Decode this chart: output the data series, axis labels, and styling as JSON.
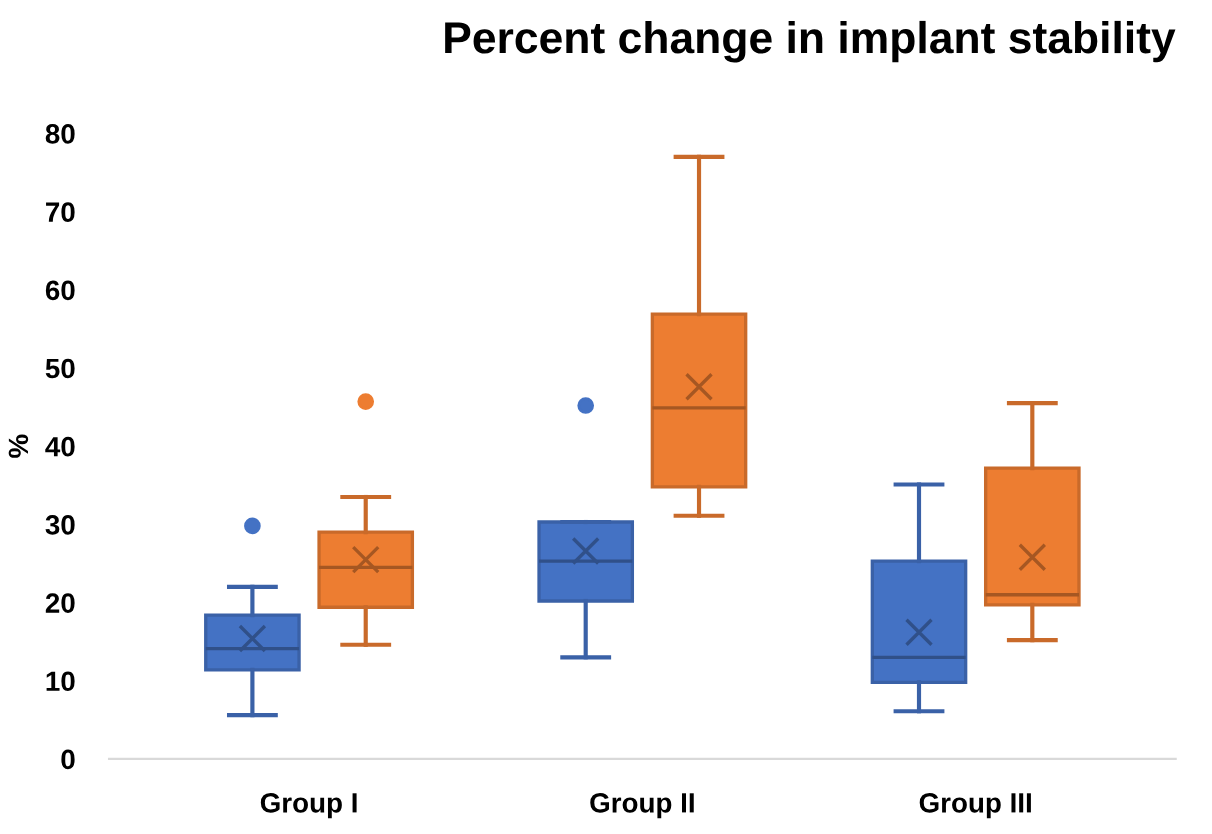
{
  "chart_data": {
    "type": "box",
    "title": "Percent change in implant stability",
    "ylabel": "%",
    "categories": [
      "Group I",
      "Group II",
      "Group III"
    ],
    "ylim": [
      0,
      80
    ],
    "yticks": [
      0,
      10,
      20,
      30,
      40,
      50,
      60,
      70,
      80
    ],
    "grid": false,
    "legend": false,
    "series": [
      {
        "color": "#4472c4",
        "boxes": [
          {
            "low": 5.6,
            "q1": 11.4,
            "median": 14.1,
            "q3": 18.4,
            "high": 22,
            "mean": 15.4,
            "outliers": [
              29.8
            ]
          },
          {
            "low": 13,
            "q1": 20.2,
            "median": 25.3,
            "q3": 30.3,
            "high": 30.3,
            "mean": 26.6,
            "outliers": [
              45.2
            ]
          },
          {
            "low": 6.1,
            "q1": 9.8,
            "median": 13,
            "q3": 25.3,
            "high": 35.1,
            "mean": 16.2
          }
        ]
      },
      {
        "color": "#ed7d31",
        "boxes": [
          {
            "low": 14.6,
            "q1": 19.4,
            "median": 24.5,
            "q3": 29,
            "high": 33.5,
            "mean": 25.5,
            "outliers": [
              45.7
            ]
          },
          {
            "low": 31.1,
            "q1": 34.8,
            "median": 44.9,
            "q3": 56.9,
            "high": 77,
            "mean": 47.6
          },
          {
            "low": 15.2,
            "q1": 19.7,
            "median": 21,
            "q3": 37.2,
            "high": 45.5,
            "mean": 25.8
          }
        ]
      }
    ]
  }
}
